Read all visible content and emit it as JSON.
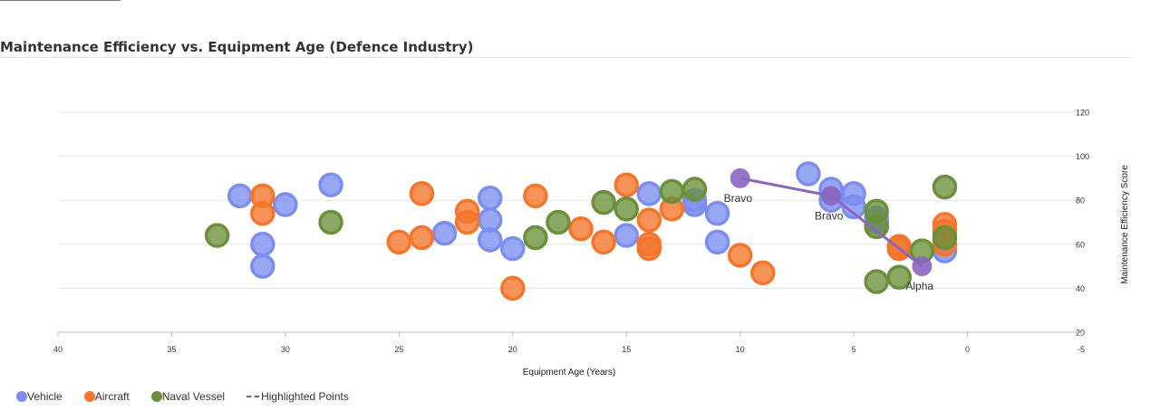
{
  "title": "Maintenance Efficiency vs. Equipment Age (Defence Industry)",
  "chart_data": {
    "type": "scatter",
    "xlabel": "Equipment Age (Years)",
    "ylabel": "Maintenance Efficiency Score",
    "xlim": [
      40,
      -5
    ],
    "ylim": [
      20,
      120
    ],
    "x_ticks": [
      40,
      35,
      30,
      25,
      20,
      15,
      10,
      5,
      0,
      -5
    ],
    "y_ticks": [
      20,
      40,
      60,
      80,
      100,
      120
    ],
    "grid": true,
    "legend_position": "bottom-left",
    "series": [
      {
        "name": "Vehicle",
        "color": "#7b8ef0",
        "points": [
          [
            32,
            82
          ],
          [
            31,
            60
          ],
          [
            31,
            50
          ],
          [
            30,
            78
          ],
          [
            28,
            87
          ],
          [
            23,
            65
          ],
          [
            21,
            81
          ],
          [
            21,
            71
          ],
          [
            21,
            62
          ],
          [
            20,
            58
          ],
          [
            15,
            64
          ],
          [
            14,
            83
          ],
          [
            12,
            80
          ],
          [
            12,
            78
          ],
          [
            11,
            74
          ],
          [
            11,
            61
          ],
          [
            7,
            92
          ],
          [
            6,
            85
          ],
          [
            6,
            80
          ],
          [
            5,
            83
          ],
          [
            5,
            77
          ],
          [
            4,
            72
          ],
          [
            4,
            70
          ],
          [
            1,
            57
          ]
        ]
      },
      {
        "name": "Aircraft",
        "color": "#f5752a",
        "points": [
          [
            31,
            82
          ],
          [
            31,
            74
          ],
          [
            25,
            61
          ],
          [
            24,
            83
          ],
          [
            24,
            63
          ],
          [
            22,
            75
          ],
          [
            22,
            70
          ],
          [
            20,
            40
          ],
          [
            19,
            82
          ],
          [
            17,
            67
          ],
          [
            16,
            61
          ],
          [
            15,
            87
          ],
          [
            14,
            71
          ],
          [
            14,
            60
          ],
          [
            14,
            58
          ],
          [
            13,
            76
          ],
          [
            10,
            55
          ],
          [
            9,
            47
          ],
          [
            3,
            59
          ],
          [
            3,
            58
          ],
          [
            1,
            69
          ],
          [
            1,
            66
          ],
          [
            1,
            60
          ]
        ]
      },
      {
        "name": "Naval Vessel",
        "color": "#6b8f3a",
        "points": [
          [
            33,
            64
          ],
          [
            28,
            70
          ],
          [
            19,
            63
          ],
          [
            18,
            70
          ],
          [
            16,
            79
          ],
          [
            15,
            76
          ],
          [
            13,
            84
          ],
          [
            12,
            85
          ],
          [
            4,
            75
          ],
          [
            4,
            68
          ],
          [
            4,
            43
          ],
          [
            3,
            45
          ],
          [
            2,
            57
          ],
          [
            1,
            86
          ],
          [
            1,
            63
          ]
        ]
      }
    ],
    "highlighted": {
      "name": "Highlighted Points",
      "color": "#8a66bf",
      "points": [
        {
          "x": 10,
          "y": 90,
          "label": "Bravo"
        },
        {
          "x": 6,
          "y": 82,
          "label": "Bravo"
        },
        {
          "x": 2,
          "y": 50,
          "label": "Alpha"
        }
      ]
    }
  }
}
